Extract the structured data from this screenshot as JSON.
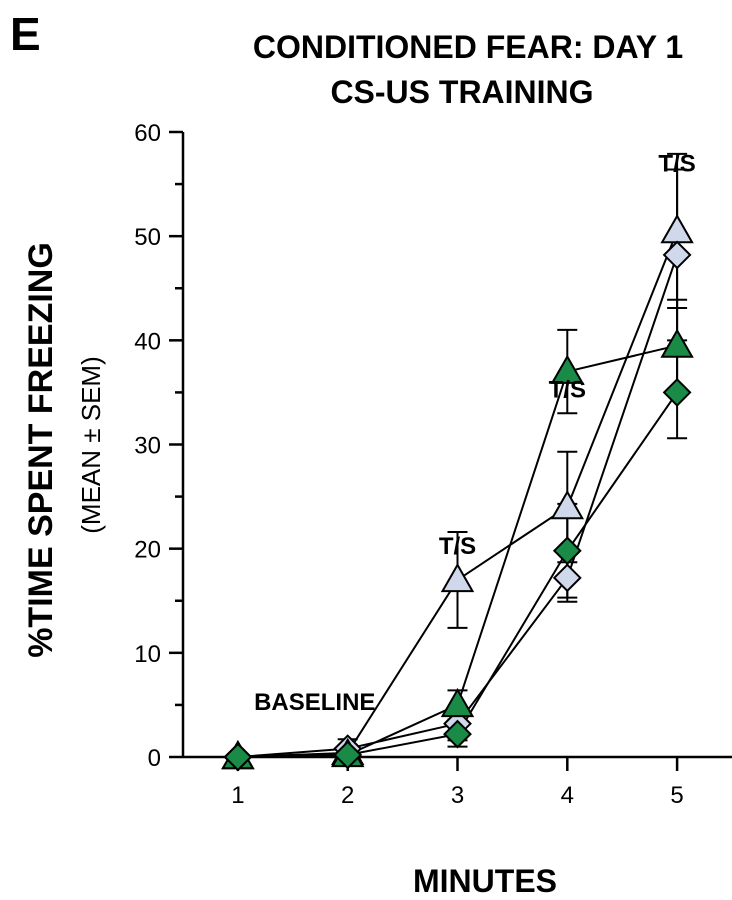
{
  "panel_label": "E",
  "chart_data": {
    "type": "line",
    "title": "CONDITIONED FEAR: DAY 1",
    "subtitle": "CS-US TRAINING",
    "xlabel": "MINUTES",
    "ylabel": "%TIME SPENT FREEZING",
    "ylabel_sub": "(MEAN ± SEM)",
    "x": [
      1,
      2,
      3,
      4,
      5
    ],
    "xlim": [
      0.5,
      5.5
    ],
    "ylim": [
      0,
      60
    ],
    "yticks": [
      0,
      10,
      20,
      30,
      40,
      50,
      60
    ],
    "grid": false,
    "annotations": [
      {
        "text": "BASELINE",
        "x": 1.7,
        "y": 4.5
      },
      {
        "text": "T/S",
        "x": 3,
        "y": 19.5
      },
      {
        "text": "T/S",
        "x": 4,
        "y": 34.5
      },
      {
        "text": "T/S",
        "x": 5,
        "y": 56.2
      }
    ],
    "series": [
      {
        "marker": "triangle",
        "color": "#d0d8ec",
        "values": [
          0,
          0.4,
          17,
          24,
          50.5
        ],
        "errors": [
          0.3,
          0.5,
          4.6,
          5.3,
          7.4
        ]
      },
      {
        "marker": "diamond",
        "color": "#d0d8ec",
        "values": [
          0,
          0.8,
          3.2,
          17.2,
          48.2
        ],
        "errors": [
          0.3,
          0.9,
          1.6,
          2.3,
          8.2
        ]
      },
      {
        "marker": "triangle",
        "color": "#1a8a47",
        "values": [
          0,
          0.2,
          5,
          37,
          39.5
        ],
        "errors": [
          0.3,
          0.4,
          1.4,
          4.0,
          4.4
        ]
      },
      {
        "marker": "diamond",
        "color": "#1a8a47",
        "values": [
          0,
          0.2,
          2.2,
          19.8,
          35
        ],
        "errors": [
          0.3,
          0.4,
          1.2,
          4.5,
          4.4
        ]
      }
    ]
  }
}
